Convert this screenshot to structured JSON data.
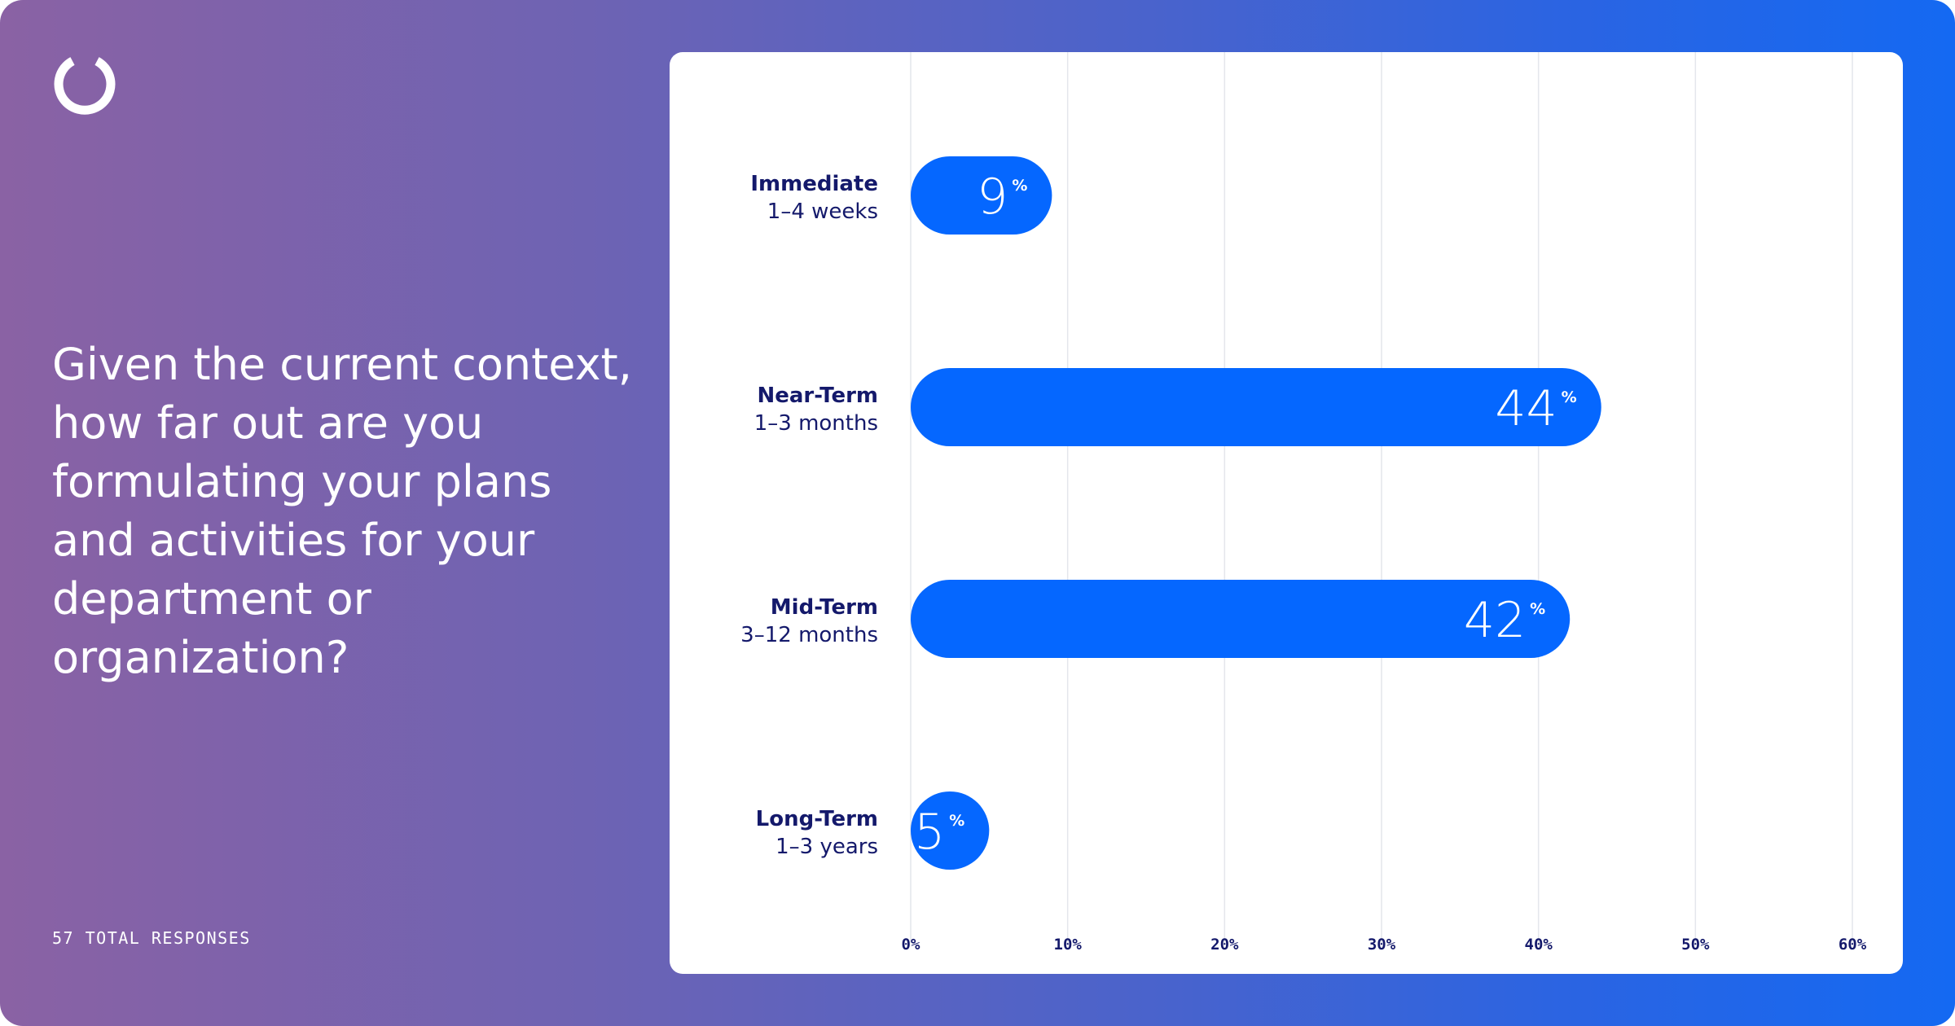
{
  "question": "Given the current context, how far out are you formulating your plans and activities for your department or organization?",
  "responses_label": "57 TOTAL RESPONSES",
  "logo_icon": "ring-logo-icon",
  "colors": {
    "bar": "#0567ff",
    "label_text": "#14196b",
    "background_start": "#8a62a4",
    "background_end": "#1469f2"
  },
  "chart_data": {
    "type": "bar",
    "orientation": "horizontal",
    "categories": [
      "Immediate",
      "Near-Term",
      "Mid-Term",
      "Long-Term"
    ],
    "category_subtitles": [
      "1–4 weeks",
      "1–3 months",
      "3–12 months",
      "1–3 years"
    ],
    "values": [
      9,
      44,
      42,
      5
    ],
    "value_suffix": "%",
    "xlim": [
      0,
      60
    ],
    "x_ticks": [
      "0%",
      "10%",
      "20%",
      "30%",
      "40%",
      "50%",
      "60%"
    ],
    "grid": true,
    "title": "",
    "xlabel": "",
    "ylabel": ""
  }
}
